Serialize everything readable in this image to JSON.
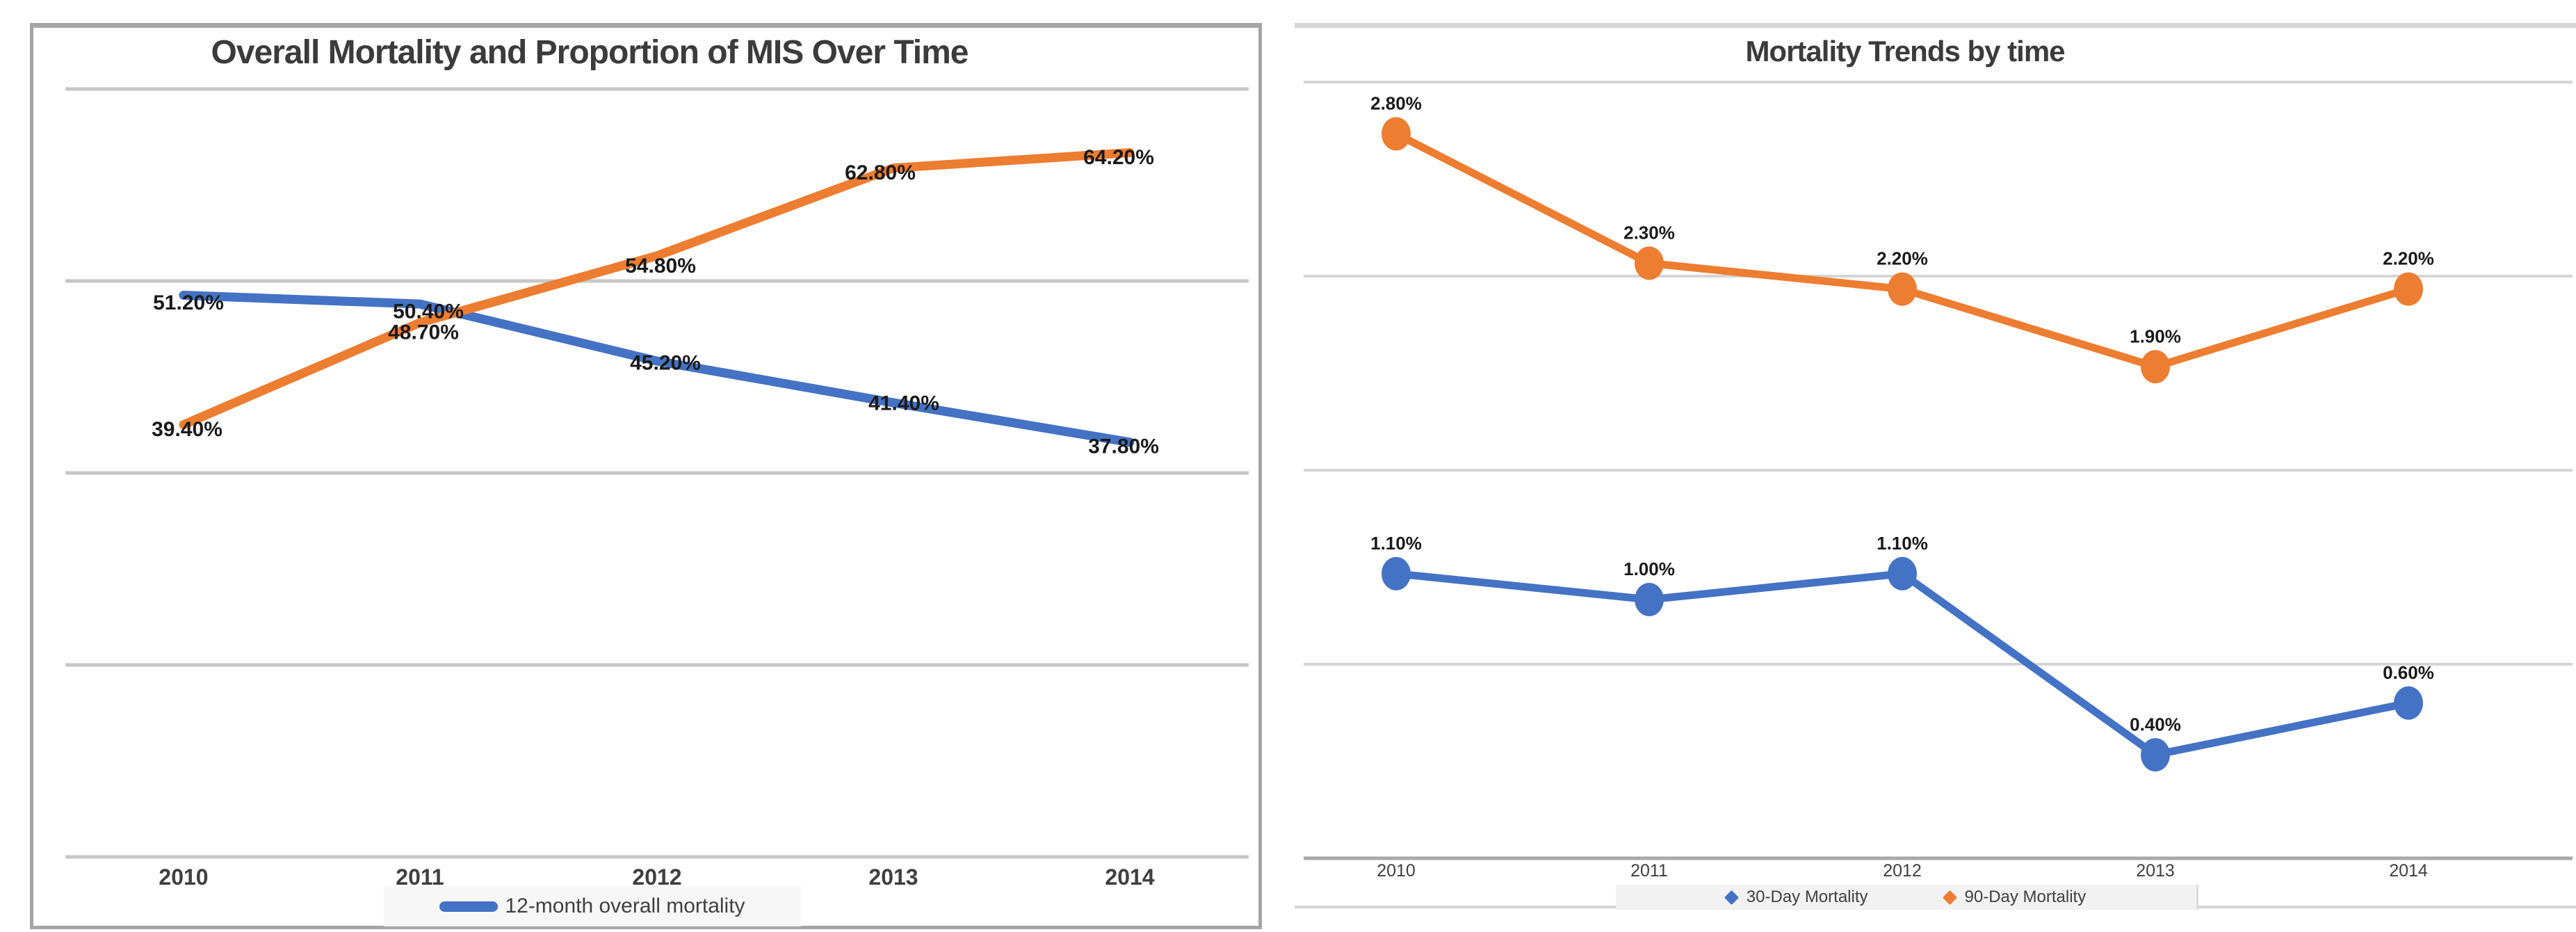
{
  "chart_data": [
    {
      "type": "line",
      "title": "Overall Mortality and Proportion of MIS Over Time",
      "categories": [
        "2010",
        "2011",
        "2012",
        "2013",
        "2014"
      ],
      "series": [
        {
          "name": "12-month overall mortality",
          "color": "#4472C4",
          "marker": "none",
          "values": [
            51.2,
            50.4,
            45.2,
            41.4,
            37.8
          ],
          "labels": [
            "51.20%",
            "50.40%",
            "45.20%",
            "41.40%",
            "37.80%"
          ]
        },
        {
          "name": "",
          "color": "#ED7D31",
          "marker": "none",
          "values": [
            39.4,
            48.7,
            54.8,
            62.8,
            64.2
          ],
          "labels": [
            "39.40%",
            "48.70%",
            "54.80%",
            "62.80%",
            "64.20%"
          ]
        }
      ],
      "ylim": [
        0,
        70
      ],
      "gridline_count": 5,
      "grid_on": true,
      "xlabel": "",
      "ylabel": "",
      "legend_position": "bottom",
      "legend": [
        {
          "label": "12-month overall mortality",
          "color": "#4472C4",
          "glyph": "line"
        }
      ]
    },
    {
      "type": "line",
      "title": "Mortality Trends by time",
      "categories": [
        "2010",
        "2011",
        "2012",
        "2013",
        "2014"
      ],
      "series": [
        {
          "name": "30-Day Mortality",
          "color": "#4472C4",
          "marker": "circle",
          "values": [
            1.1,
            1.0,
            1.1,
            0.4,
            0.6
          ],
          "labels": [
            "1.10%",
            "1.00%",
            "1.10%",
            "0.40%",
            "0.60%"
          ]
        },
        {
          "name": "90-Day Mortality",
          "color": "#ED7D31",
          "marker": "circle",
          "values": [
            2.8,
            2.3,
            2.2,
            1.9,
            2.2
          ],
          "labels": [
            "2.80%",
            "2.30%",
            "2.20%",
            "1.90%",
            "2.20%"
          ]
        }
      ],
      "ylim": [
        0,
        3
      ],
      "gridline_count": 5,
      "grid_on": true,
      "xlabel": "",
      "ylabel": "",
      "legend_position": "bottom",
      "legend": [
        {
          "label": "30-Day Mortality",
          "color": "#4472C4",
          "glyph": "diamond"
        },
        {
          "label": "90-Day Mortality",
          "color": "#ED7D31",
          "glyph": "diamond"
        }
      ]
    }
  ],
  "colors": {
    "accent_blue": "#4472C4",
    "accent_orange": "#ED7D31",
    "title_text": "#3B3B3B",
    "axis_text": "#3F3F3F",
    "data_label_text": "#1A1A1A",
    "gridline_left": "#C6C6C6",
    "gridline_right": "#D5D5D5",
    "axis_line_right": "#A8A8A8",
    "chart_border_left": "#A5A5A5",
    "chart_border_right": "#D5D5D5",
    "legend_bg_left": "#F7F7F7",
    "legend_bg_right": "#F2F2F2"
  }
}
